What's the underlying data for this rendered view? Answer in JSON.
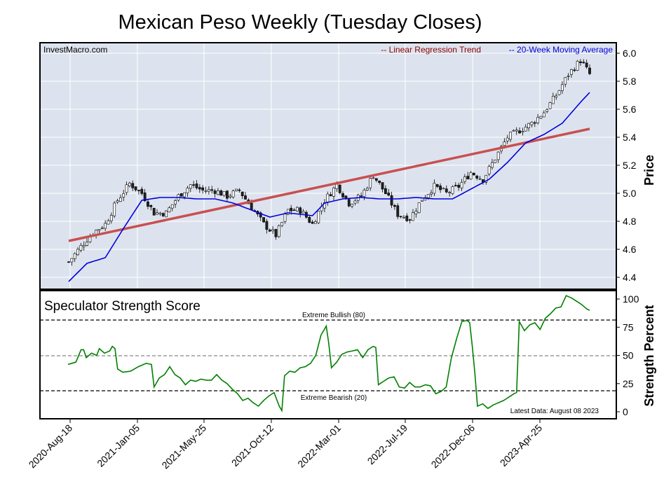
{
  "chart_data": [
    {
      "type": "candlestick",
      "title": "Mexican Peso Weekly (Tuesday Closes)",
      "ylabel": "Price",
      "source": "InvestMacro.com",
      "ylim": [
        4.32,
        6.12
      ],
      "yticks": [
        "6.0",
        "5.8",
        "5.6",
        "5.4",
        "5.2",
        "5.0",
        "4.8",
        "4.6",
        "4.4"
      ],
      "legend": [
        "-- Linear Regression Trend",
        "-- 20-Week Moving Average"
      ],
      "colors": {
        "trend": "#c85050",
        "ma": "#0000dd",
        "legend_trend": "#8b0000",
        "legend_ma": "#0000dd",
        "bg": "#dde3ee"
      },
      "x_dates": [
        "2020-Aug-18",
        "2021-Jan-05",
        "2021-May-25",
        "2021-Oct-12",
        "2022-Mar-01",
        "2022-Jul-19",
        "2022-Dec-06",
        "2023-Apr-25"
      ],
      "trend": {
        "start": 4.66,
        "end": 5.46
      },
      "close_anchors": [
        [
          0,
          4.51
        ],
        [
          4,
          4.62
        ],
        [
          8,
          4.72
        ],
        [
          12,
          4.78
        ],
        [
          16,
          4.95
        ],
        [
          20,
          5.07
        ],
        [
          24,
          5.0
        ],
        [
          28,
          4.86
        ],
        [
          32,
          4.86
        ],
        [
          36,
          4.98
        ],
        [
          40,
          5.06
        ],
        [
          44,
          5.02
        ],
        [
          48,
          5.02
        ],
        [
          52,
          4.98
        ],
        [
          56,
          5.02
        ],
        [
          60,
          4.9
        ],
        [
          64,
          4.78
        ],
        [
          68,
          4.7
        ],
        [
          72,
          4.88
        ],
        [
          76,
          4.88
        ],
        [
          80,
          4.78
        ],
        [
          84,
          4.95
        ],
        [
          88,
          5.06
        ],
        [
          92,
          4.93
        ],
        [
          96,
          4.98
        ],
        [
          100,
          5.13
        ],
        [
          104,
          5.0
        ],
        [
          108,
          4.85
        ],
        [
          112,
          4.82
        ],
        [
          116,
          4.96
        ],
        [
          120,
          5.05
        ],
        [
          124,
          5.0
        ],
        [
          128,
          5.05
        ],
        [
          132,
          5.15
        ],
        [
          136,
          5.1
        ],
        [
          140,
          5.25
        ],
        [
          144,
          5.4
        ],
        [
          148,
          5.45
        ],
        [
          152,
          5.5
        ],
        [
          156,
          5.58
        ],
        [
          160,
          5.7
        ],
        [
          164,
          5.85
        ],
        [
          168,
          5.95
        ],
        [
          171,
          5.85
        ]
      ],
      "ma_anchors": [
        [
          0,
          4.37
        ],
        [
          6,
          4.5
        ],
        [
          12,
          4.54
        ],
        [
          18,
          4.75
        ],
        [
          24,
          4.95
        ],
        [
          30,
          4.97
        ],
        [
          36,
          4.97
        ],
        [
          42,
          4.96
        ],
        [
          48,
          4.96
        ],
        [
          54,
          4.93
        ],
        [
          60,
          4.88
        ],
        [
          66,
          4.83
        ],
        [
          72,
          4.86
        ],
        [
          80,
          4.84
        ],
        [
          84,
          4.93
        ],
        [
          90,
          4.96
        ],
        [
          96,
          4.97
        ],
        [
          102,
          4.96
        ],
        [
          108,
          4.96
        ],
        [
          114,
          4.97
        ],
        [
          120,
          4.96
        ],
        [
          126,
          4.96
        ],
        [
          132,
          5.03
        ],
        [
          138,
          5.1
        ],
        [
          144,
          5.22
        ],
        [
          150,
          5.36
        ],
        [
          156,
          5.42
        ],
        [
          162,
          5.5
        ],
        [
          168,
          5.65
        ],
        [
          171,
          5.72
        ]
      ]
    },
    {
      "type": "line",
      "title": "Speculator Strength Score",
      "ylabel": "Strength Percent",
      "ylim": [
        0,
        100
      ],
      "yticks": [
        "100",
        "75",
        "50",
        "25",
        "0"
      ],
      "annotations": [
        "Extreme Bullish (80)",
        "Extreme Bearish (20)",
        "Latest Data: August 08 2023"
      ],
      "colors": {
        "line": "#008000"
      },
      "anchors": [
        [
          0,
          42
        ],
        [
          3,
          44
        ],
        [
          5,
          55
        ],
        [
          6,
          55
        ],
        [
          7,
          48
        ],
        [
          9,
          52
        ],
        [
          11,
          50
        ],
        [
          12,
          56
        ],
        [
          14,
          52
        ],
        [
          16,
          54
        ],
        [
          17,
          58
        ],
        [
          18,
          56
        ],
        [
          19,
          38
        ],
        [
          21,
          35
        ],
        [
          24,
          36
        ],
        [
          27,
          40
        ],
        [
          30,
          43
        ],
        [
          32,
          42
        ],
        [
          33,
          22
        ],
        [
          35,
          30
        ],
        [
          37,
          33
        ],
        [
          39,
          40
        ],
        [
          41,
          33
        ],
        [
          43,
          30
        ],
        [
          45,
          24
        ],
        [
          47,
          28
        ],
        [
          49,
          27
        ],
        [
          51,
          29
        ],
        [
          53,
          28
        ],
        [
          55,
          28
        ],
        [
          57,
          33
        ],
        [
          59,
          28
        ],
        [
          61,
          25
        ],
        [
          63,
          20
        ],
        [
          65,
          16
        ],
        [
          67,
          10
        ],
        [
          69,
          12
        ],
        [
          71,
          8
        ],
        [
          73,
          5
        ],
        [
          75,
          10
        ],
        [
          77,
          14
        ],
        [
          79,
          17
        ],
        [
          81,
          5
        ],
        [
          82,
          1
        ],
        [
          83,
          32
        ],
        [
          85,
          36
        ],
        [
          87,
          35
        ],
        [
          89,
          39
        ],
        [
          91,
          40
        ],
        [
          93,
          43
        ],
        [
          95,
          50
        ],
        [
          97,
          68
        ],
        [
          99,
          76
        ],
        [
          100,
          60
        ],
        [
          101,
          39
        ],
        [
          103,
          44
        ],
        [
          105,
          51
        ],
        [
          107,
          53
        ],
        [
          109,
          54
        ],
        [
          111,
          55
        ],
        [
          113,
          48
        ],
        [
          115,
          55
        ],
        [
          117,
          58
        ],
        [
          118,
          57
        ],
        [
          119,
          24
        ],
        [
          121,
          27
        ],
        [
          123,
          30
        ],
        [
          125,
          31
        ],
        [
          127,
          22
        ],
        [
          129,
          21
        ],
        [
          131,
          26
        ],
        [
          133,
          22
        ],
        [
          135,
          22
        ],
        [
          137,
          24
        ],
        [
          139,
          23
        ],
        [
          141,
          16
        ],
        [
          143,
          18
        ],
        [
          145,
          22
        ],
        [
          147,
          48
        ],
        [
          149,
          65
        ],
        [
          151,
          80
        ],
        [
          153,
          81
        ],
        [
          154,
          79
        ],
        [
          155,
          58
        ],
        [
          156,
          34
        ],
        [
          157,
          5
        ],
        [
          159,
          7
        ],
        [
          161,
          3
        ],
        [
          163,
          6
        ],
        [
          165,
          8
        ],
        [
          167,
          10
        ],
        [
          169,
          13
        ],
        [
          171,
          16
        ],
        [
          172,
          17
        ],
        [
          173,
          80
        ],
        [
          175,
          72
        ],
        [
          177,
          77
        ],
        [
          179,
          79
        ],
        [
          181,
          73
        ],
        [
          183,
          83
        ],
        [
          185,
          87
        ],
        [
          187,
          92
        ],
        [
          189,
          93
        ],
        [
          191,
          103
        ],
        [
          193,
          101
        ],
        [
          195,
          98
        ],
        [
          197,
          95
        ],
        [
          199,
          91
        ],
        [
          200,
          90
        ]
      ]
    }
  ]
}
